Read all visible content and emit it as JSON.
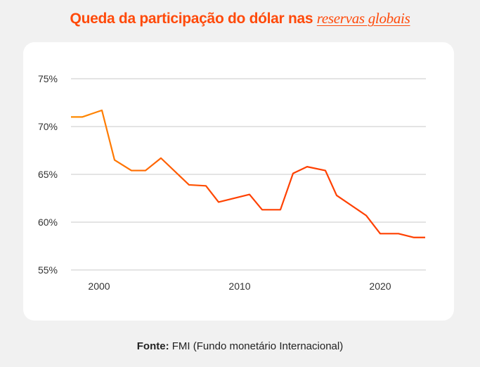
{
  "title": {
    "main": "Queda da participação do dólar nas ",
    "emphasis": "reservas globais"
  },
  "source": {
    "label": "Fonte:",
    "text": " FMI (Fundo monetário Internacional)"
  },
  "colors": {
    "title": "#ff4a0a",
    "line_start": "#ff8c00",
    "line_end": "#ff4000",
    "grid": "#c8c8c8"
  },
  "chart_data": {
    "type": "line",
    "title": "Queda da participação do dólar nas reservas globais",
    "xlabel": "",
    "ylabel": "",
    "xlim": [
      1998,
      2023.2
    ],
    "ylim": [
      55,
      75
    ],
    "grid": true,
    "x_ticks": [
      2000,
      2010,
      2020
    ],
    "x_tick_labels": [
      "2000",
      "2010",
      "2020"
    ],
    "y_ticks": [
      55,
      60,
      65,
      70,
      75
    ],
    "y_tick_labels": [
      "55%",
      "60%",
      "65%",
      "70%",
      "75%"
    ],
    "series": [
      {
        "x": [
          1998,
          1998.8,
          2000.2,
          2001.1,
          2002.3,
          2003.3,
          2004.4,
          2006.4,
          2007.6,
          2008.5,
          2010.7,
          2011.6,
          2012.9,
          2013.8,
          2014.8,
          2016.1,
          2016.9,
          2019.0,
          2020.0,
          2021.3,
          2022.4,
          2023.2
        ],
        "y": [
          71.0,
          71.0,
          71.7,
          66.5,
          65.4,
          65.4,
          66.7,
          63.9,
          63.8,
          62.1,
          62.9,
          61.3,
          61.3,
          65.1,
          65.8,
          65.4,
          62.8,
          60.7,
          58.8,
          58.8,
          58.4,
          58.4
        ]
      }
    ]
  }
}
